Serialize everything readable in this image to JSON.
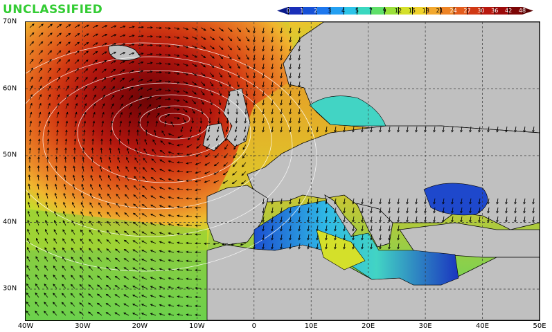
{
  "classification": "UNCLASSIFIED",
  "colorbar": {
    "labels": [
      "0",
      "1",
      "2",
      "3",
      "4",
      "5",
      "7",
      "9",
      "12",
      "15",
      "18",
      "21",
      "24",
      "27",
      "30",
      "36",
      "42",
      "48"
    ],
    "colors": [
      "#1a2fb8",
      "#1650d6",
      "#1e78ee",
      "#24a0f2",
      "#2cc4e8",
      "#3ad8c0",
      "#5fe06a",
      "#9ae03a",
      "#d4e02a",
      "#f0d22c",
      "#f2a82e",
      "#ee8426",
      "#e45c1c",
      "#d03814",
      "#b8180e",
      "#9c0a0a",
      "#7c0606"
    ],
    "left_arrow_color": "#0a1a8a",
    "right_arrow_color": "#5a0202"
  },
  "map": {
    "land_color": "#c0c0c0",
    "grid_line_color": "#333333",
    "latitude_labels": [
      "70N",
      "60N",
      "50N",
      "40N",
      "30N"
    ],
    "longitude_labels": [
      "40W",
      "30W",
      "20W",
      "10W",
      "0",
      "10E",
      "20E",
      "30E",
      "40E",
      "50E"
    ]
  },
  "icons": {
    "wind_arrow": "wind-direction-arrow-icon"
  }
}
